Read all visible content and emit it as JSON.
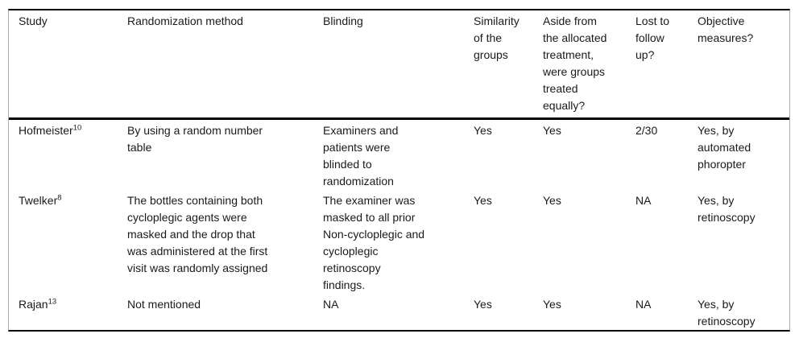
{
  "table": {
    "columns": [
      {
        "label": "Study"
      },
      {
        "label": "Randomization method"
      },
      {
        "label": "Blinding"
      },
      {
        "label": "Similarity\nof the\ngroups"
      },
      {
        "label": "Aside from\nthe allocated\ntreatment,\nwere groups\ntreated\nequally?"
      },
      {
        "label": "Lost to\nfollow\nup?"
      },
      {
        "label": "Objective\nmeasures?"
      }
    ],
    "rows": [
      {
        "study": "Hofmeister",
        "ref": "10",
        "randomization": "By using a random number\ntable",
        "blinding": "Examiners and\npatients were\nblinded to\nrandomization",
        "similarity": "Yes",
        "equal_treatment": "Yes",
        "lost_to_follow_up": "2/30",
        "objective_measures": "Yes, by\nautomated\nphoropter"
      },
      {
        "study": "Twelker",
        "ref": "8",
        "randomization": "The bottles containing both\ncycloplegic agents were\nmasked and the drop that\nwas administered at the first\nvisit was randomly assigned",
        "blinding": "The examiner was\nmasked to all prior\nNon-cycloplegic and\ncycloplegic\nretinoscopy\nfindings.",
        "similarity": "Yes",
        "equal_treatment": "Yes",
        "lost_to_follow_up": "NA",
        "objective_measures": "Yes, by\nretinoscopy"
      },
      {
        "study": "Rajan",
        "ref": "13",
        "randomization": "Not mentioned",
        "blinding": "NA",
        "similarity": "Yes",
        "equal_treatment": "Yes",
        "lost_to_follow_up": "NA",
        "objective_measures": "Yes, by\nretinoscopy"
      }
    ]
  }
}
